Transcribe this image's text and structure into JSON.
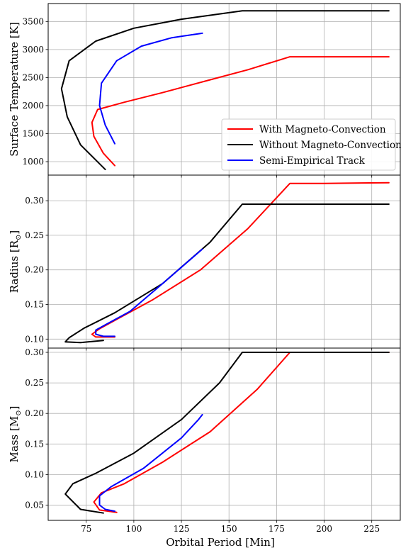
{
  "chart_data": {
    "type": "line",
    "grid": true,
    "legend_position": "lower-right of top panel",
    "x_label": "Orbital Period [Min]",
    "x_ticks": [
      75,
      100,
      125,
      150,
      175,
      200,
      225
    ],
    "x_tick_labels": [
      "75",
      "100",
      "125",
      "150",
      "175",
      "200",
      "225"
    ],
    "xlim": [
      55,
      240
    ],
    "series_styles": [
      {
        "name": "With Magneto-Convection",
        "color": "#ff0000"
      },
      {
        "name": "Without Magneto-Convection",
        "color": "#000000"
      },
      {
        "name": "Semi-Empirical Track",
        "color": "#0000ff"
      }
    ],
    "panels": [
      {
        "id": "temperature",
        "ylabel": "Surface Temperature [K]",
        "ylabel_main": "Surface Temperature [K]",
        "ylabel_sub": "",
        "ylim": [
          760,
          3820
        ],
        "y_ticks": [
          1000,
          1500,
          2000,
          2500,
          3000,
          3500
        ],
        "y_tick_labels": [
          "1000",
          "1500",
          "2000",
          "2500",
          "3000",
          "3500"
        ],
        "series": [
          {
            "name": "With Magneto-Convection",
            "points": [
              [
                90,
                930
              ],
              [
                84,
                1150
              ],
              [
                79,
                1450
              ],
              [
                78,
                1700
              ],
              [
                81,
                1930
              ],
              [
                95,
                2060
              ],
              [
                115,
                2230
              ],
              [
                140,
                2460
              ],
              [
                160,
                2640
              ],
              [
                182,
                2870
              ],
              [
                200,
                2870
              ],
              [
                234,
                2870
              ]
            ]
          },
          {
            "name": "Without Magneto-Convection",
            "points": [
              [
                85,
                860
              ],
              [
                72,
                1300
              ],
              [
                65,
                1800
              ],
              [
                62,
                2300
              ],
              [
                66,
                2800
              ],
              [
                80,
                3150
              ],
              [
                100,
                3380
              ],
              [
                125,
                3540
              ],
              [
                157,
                3690
              ],
              [
                180,
                3690
              ],
              [
                234,
                3690
              ]
            ]
          },
          {
            "name": "Semi-Empirical Track",
            "points": [
              [
                90,
                1320
              ],
              [
                85,
                1650
              ],
              [
                82,
                2000
              ],
              [
                83,
                2400
              ],
              [
                91,
                2800
              ],
              [
                104,
                3060
              ],
              [
                120,
                3210
              ],
              [
                136,
                3290
              ]
            ]
          }
        ]
      },
      {
        "id": "radius",
        "ylabel": "Radius [R☉]",
        "ylabel_main": "Radius [R",
        "ylabel_sub": "⊙",
        "ylabel_close": "]",
        "ylim": [
          0.087,
          0.337
        ],
        "y_ticks": [
          0.1,
          0.15,
          0.2,
          0.25,
          0.3
        ],
        "y_tick_labels": [
          "0.10",
          "0.15",
          "0.20",
          "0.25",
          "0.30"
        ],
        "series": [
          {
            "name": "With Magneto-Convection",
            "points": [
              [
                90,
                0.103
              ],
              [
                80,
                0.103
              ],
              [
                78,
                0.107
              ],
              [
                82,
                0.115
              ],
              [
                92,
                0.13
              ],
              [
                110,
                0.157
              ],
              [
                135,
                0.2
              ],
              [
                160,
                0.26
              ],
              [
                182,
                0.325
              ],
              [
                200,
                0.325
              ],
              [
                234,
                0.326
              ]
            ]
          },
          {
            "name": "Without Magneto-Convection",
            "points": [
              [
                84,
                0.098
              ],
              [
                72,
                0.095
              ],
              [
                64,
                0.096
              ],
              [
                66,
                0.102
              ],
              [
                74,
                0.116
              ],
              [
                90,
                0.138
              ],
              [
                115,
                0.18
              ],
              [
                140,
                0.24
              ],
              [
                157,
                0.295
              ],
              [
                180,
                0.295
              ],
              [
                234,
                0.295
              ]
            ]
          },
          {
            "name": "Semi-Empirical Track",
            "points": [
              [
                90,
                0.104
              ],
              [
                84,
                0.104
              ],
              [
                80,
                0.107
              ],
              [
                80,
                0.113
              ],
              [
                86,
                0.122
              ],
              [
                98,
                0.14
              ],
              [
                115,
                0.18
              ],
              [
                136,
                0.23
              ]
            ]
          }
        ]
      },
      {
        "id": "mass",
        "ylabel": "Mass [M☉]",
        "ylabel_main": "Mass [M",
        "ylabel_sub": "⊙",
        "ylabel_close": "]",
        "ylim": [
          0.025,
          0.307
        ],
        "y_ticks": [
          0.05,
          0.1,
          0.15,
          0.2,
          0.25,
          0.3
        ],
        "y_tick_labels": [
          "0.05",
          "0.10",
          "0.15",
          "0.20",
          "0.25",
          "0.30"
        ],
        "series": [
          {
            "name": "With Magneto-Convection",
            "points": [
              [
                91,
                0.038
              ],
              [
                82,
                0.042
              ],
              [
                79,
                0.055
              ],
              [
                83,
                0.07
              ],
              [
                95,
                0.085
              ],
              [
                115,
                0.12
              ],
              [
                140,
                0.17
              ],
              [
                165,
                0.24
              ],
              [
                182,
                0.3
              ],
              [
                200,
                0.3
              ],
              [
                234,
                0.3
              ]
            ]
          },
          {
            "name": "Without Magneto-Convection",
            "points": [
              [
                84,
                0.037
              ],
              [
                72,
                0.043
              ],
              [
                64,
                0.068
              ],
              [
                68,
                0.085
              ],
              [
                80,
                0.102
              ],
              [
                100,
                0.135
              ],
              [
                125,
                0.19
              ],
              [
                145,
                0.25
              ],
              [
                157,
                0.3
              ],
              [
                180,
                0.3
              ],
              [
                234,
                0.3
              ]
            ]
          },
          {
            "name": "Semi-Empirical Track",
            "points": [
              [
                90,
                0.04
              ],
              [
                85,
                0.043
              ],
              [
                82,
                0.05
              ],
              [
                82,
                0.065
              ],
              [
                88,
                0.08
              ],
              [
                105,
                0.11
              ],
              [
                125,
                0.16
              ],
              [
                134,
                0.19
              ],
              [
                136,
                0.198
              ]
            ]
          }
        ]
      }
    ]
  }
}
